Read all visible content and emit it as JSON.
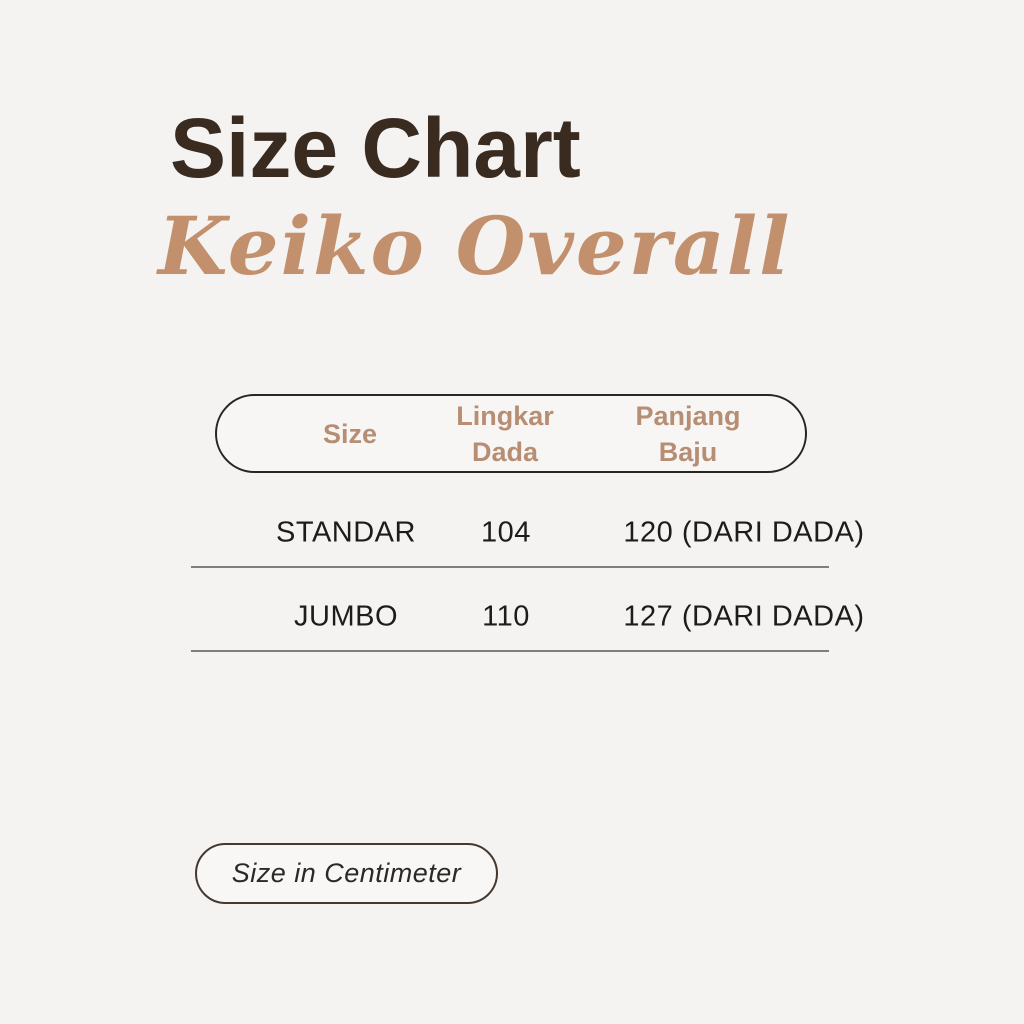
{
  "header": {
    "title": "Size Chart",
    "subtitle": "Keiko Overall"
  },
  "table": {
    "columns": [
      "Size",
      "Lingkar\nDada",
      "Panjang\nBaju"
    ],
    "rows": [
      {
        "size": "STANDAR",
        "lingkar_dada": "104",
        "panjang_baju": "120 (DARI DADA)"
      },
      {
        "size": "JUMBO",
        "lingkar_dada": "110",
        "panjang_baju": "127 (DARI DADA)"
      }
    ]
  },
  "footer": {
    "note": "Size in Centimeter"
  },
  "colors": {
    "background": "#f4f3f1",
    "title_text": "#3a2b21",
    "script_tan": "#c2906c",
    "header_tan": "#b78e73",
    "body_text": "#1d1c1a",
    "pill_border": "#2b231d",
    "footer_border": "#443830",
    "divider": "#7e7e7e"
  }
}
